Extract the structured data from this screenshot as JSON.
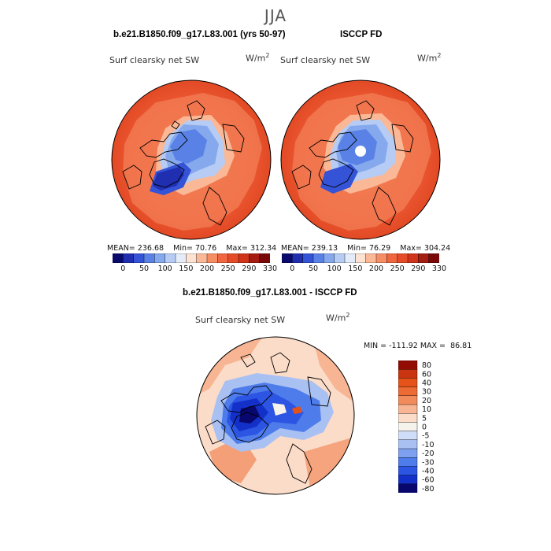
{
  "page": {
    "title": "JJA"
  },
  "panels": [
    {
      "title": "b.e21.B1850.f09_g17.L83.001 (yrs 50-97)",
      "variable": "Surf clearsky net SW",
      "units": "W/m",
      "units_exp": "2",
      "stats": {
        "mean_label": "MEAN=",
        "mean": "236.68",
        "min_label": "Min=",
        "min": "70.76",
        "max_label": "Max=",
        "max": "312.34"
      }
    },
    {
      "title": "ISCCP FD",
      "variable": "Surf clearsky net SW",
      "units": "W/m",
      "units_exp": "2",
      "stats": {
        "mean_label": "MEAN=",
        "mean": "239.13",
        "min_label": "Min=",
        "min": "76.29",
        "max_label": "Max=",
        "max": "304.24"
      }
    }
  ],
  "diff_panel": {
    "title": "b.e21.B1850.f09_g17.L83.001 - ISCCP FD",
    "variable": "Surf clearsky net SW",
    "units": "W/m",
    "units_exp": "2",
    "minmax": {
      "min_label": "MIN =",
      "min": "-111.92",
      "max_label": "MAX =",
      "max": "86.81"
    }
  },
  "colors": {
    "abs_scale": [
      "#0a0a6e",
      "#1f2fb0",
      "#3553d6",
      "#5a82e6",
      "#86a9ee",
      "#b6ccf4",
      "#e4ecfa",
      "#fde2d2",
      "#fbb896",
      "#f68e64",
      "#f0663e",
      "#e54b26",
      "#d0351a",
      "#a51d10",
      "#7a0808"
    ],
    "diff_scale": [
      "#07076e",
      "#1330c8",
      "#2c55e3",
      "#4f7ceb",
      "#7fa0ef",
      "#a9c0f3",
      "#d0ddf8",
      "#f6f3ec",
      "#fbdcc8",
      "#f8b594",
      "#f28b5c",
      "#ec6a34",
      "#e5531a",
      "#c93510",
      "#930b03"
    ]
  },
  "chart_data": [
    {
      "type": "heatmap",
      "title": "b.e21.B1850.f09_g17.L83.001 (yrs 50-97)",
      "projection": "north polar stereographic",
      "variable": "Surf clearsky net SW",
      "units": "W/m2",
      "stats": {
        "mean": 236.68,
        "min": 70.76,
        "max": 312.34
      },
      "colorbar": {
        "levels": [
          0,
          25,
          50,
          75,
          100,
          125,
          150,
          175,
          200,
          225,
          250,
          270,
          290,
          310,
          330
        ],
        "tick_labels": [
          "0",
          "50",
          "100",
          "150",
          "200",
          "250",
          "290",
          "330"
        ]
      }
    },
    {
      "type": "heatmap",
      "title": "ISCCP FD",
      "projection": "north polar stereographic",
      "variable": "Surf clearsky net SW",
      "units": "W/m2",
      "stats": {
        "mean": 239.13,
        "min": 76.29,
        "max": 304.24
      },
      "colorbar": {
        "levels": [
          0,
          25,
          50,
          75,
          100,
          125,
          150,
          175,
          200,
          225,
          250,
          270,
          290,
          310,
          330
        ],
        "tick_labels": [
          "0",
          "50",
          "100",
          "150",
          "200",
          "250",
          "290",
          "330"
        ]
      }
    },
    {
      "type": "heatmap",
      "title": "b.e21.B1850.f09_g17.L83.001 - ISCCP FD",
      "projection": "north polar stereographic",
      "variable": "Surf clearsky net SW",
      "units": "W/m2",
      "stats": {
        "min": -111.92,
        "max": 86.81
      },
      "colorbar": {
        "orientation": "vertical",
        "levels": [
          80,
          60,
          40,
          30,
          20,
          10,
          5,
          0,
          -5,
          -10,
          -20,
          -30,
          -40,
          -60,
          -80
        ],
        "tick_labels": [
          "80",
          "60",
          "40",
          "30",
          "20",
          "10",
          "5",
          "0",
          "-5",
          "-10",
          "-20",
          "-30",
          "-40",
          "-60",
          "-80"
        ]
      }
    }
  ]
}
